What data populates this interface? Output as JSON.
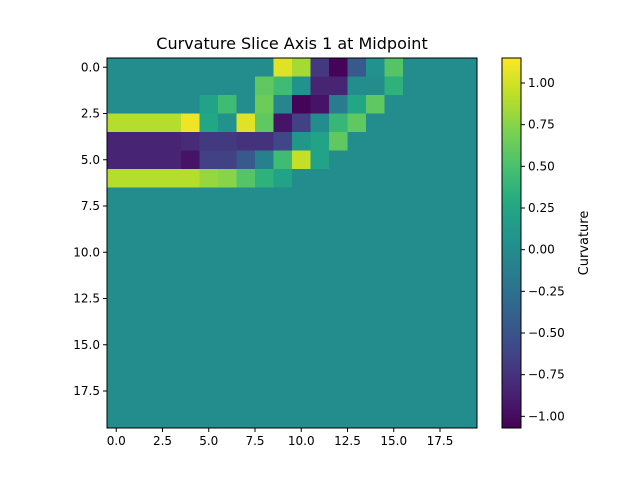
{
  "chart_data": {
    "type": "heatmap",
    "title": "Curvature Slice Axis 1 at Midpoint",
    "xlabel": "",
    "ylabel": "",
    "colorbar_label": "Curvature",
    "colormap": "viridis",
    "vmin": -1.07,
    "vmax": 1.15,
    "rows": 20,
    "cols": 20,
    "xlim": [
      -0.5,
      19.5
    ],
    "ylim": [
      19.5,
      -0.5
    ],
    "x_ticks": [
      {
        "value": 0,
        "label": "0.0"
      },
      {
        "value": 2.5,
        "label": "2.5"
      },
      {
        "value": 5,
        "label": "5.0"
      },
      {
        "value": 7.5,
        "label": "7.5"
      },
      {
        "value": 10,
        "label": "10.0"
      },
      {
        "value": 12.5,
        "label": "12.5"
      },
      {
        "value": 15,
        "label": "15.0"
      },
      {
        "value": 17.5,
        "label": "17.5"
      }
    ],
    "y_ticks": [
      {
        "value": 0,
        "label": "0.0"
      },
      {
        "value": 2.5,
        "label": "2.5"
      },
      {
        "value": 5,
        "label": "5.0"
      },
      {
        "value": 7.5,
        "label": "7.5"
      },
      {
        "value": 10,
        "label": "10.0"
      },
      {
        "value": 12.5,
        "label": "12.5"
      },
      {
        "value": 15,
        "label": "15.0"
      },
      {
        "value": 17.5,
        "label": "17.5"
      }
    ],
    "colorbar_ticks": [
      {
        "value": 1.0,
        "label": "1.00"
      },
      {
        "value": 0.75,
        "label": "0.75"
      },
      {
        "value": 0.5,
        "label": "0.50"
      },
      {
        "value": 0.25,
        "label": "0.25"
      },
      {
        "value": 0.0,
        "label": "0.00"
      },
      {
        "value": -0.25,
        "label": "−0.25"
      },
      {
        "value": -0.5,
        "label": "−0.50"
      },
      {
        "value": -0.75,
        "label": "−0.75"
      },
      {
        "value": -1.0,
        "label": "−1.00"
      }
    ],
    "values": [
      [
        0,
        0,
        0,
        0,
        0,
        0,
        0,
        0,
        0,
        1.05,
        0.85,
        -0.7,
        -1.05,
        -0.45,
        0.05,
        0.55,
        0,
        0,
        0,
        0
      ],
      [
        0,
        0,
        0,
        0,
        0,
        0,
        0,
        0,
        0.6,
        0.45,
        0.05,
        -0.85,
        -0.85,
        0,
        0,
        0.35,
        0,
        0,
        0,
        0
      ],
      [
        0,
        0,
        0,
        0,
        0,
        0.2,
        0.45,
        0,
        0.65,
        -0.05,
        -1.05,
        -0.95,
        -0.15,
        0.25,
        0.6,
        0,
        0,
        0,
        0,
        0
      ],
      [
        0.9,
        0.9,
        0.9,
        0.9,
        1.1,
        0.25,
        0.05,
        1.05,
        0.6,
        -0.95,
        -0.65,
        0,
        0.4,
        0.6,
        0,
        0,
        0,
        0,
        0,
        0
      ],
      [
        -0.85,
        -0.85,
        -0.85,
        -0.85,
        -0.8,
        -0.7,
        -0.7,
        -0.75,
        -0.75,
        -0.6,
        0.1,
        0.2,
        0.6,
        0,
        0,
        0,
        0,
        0,
        0,
        0
      ],
      [
        -0.85,
        -0.85,
        -0.85,
        -0.85,
        -0.95,
        -0.65,
        -0.65,
        -0.45,
        -0.1,
        0.45,
        0.95,
        0.2,
        0,
        0,
        0,
        0,
        0,
        0,
        0,
        0
      ],
      [
        0.9,
        0.9,
        0.9,
        0.9,
        0.9,
        0.8,
        0.75,
        0.55,
        0.35,
        0.2,
        0,
        0,
        0,
        0,
        0,
        0,
        0,
        0,
        0,
        0
      ],
      [
        0,
        0,
        0,
        0,
        0,
        0,
        0,
        0,
        0,
        0,
        0,
        0,
        0,
        0,
        0,
        0,
        0,
        0,
        0,
        0
      ],
      [
        0,
        0,
        0,
        0,
        0,
        0,
        0,
        0,
        0,
        0,
        0,
        0,
        0,
        0,
        0,
        0,
        0,
        0,
        0,
        0
      ],
      [
        0,
        0,
        0,
        0,
        0,
        0,
        0,
        0,
        0,
        0,
        0,
        0,
        0,
        0,
        0,
        0,
        0,
        0,
        0,
        0
      ],
      [
        0,
        0,
        0,
        0,
        0,
        0,
        0,
        0,
        0,
        0,
        0,
        0,
        0,
        0,
        0,
        0,
        0,
        0,
        0,
        0
      ],
      [
        0,
        0,
        0,
        0,
        0,
        0,
        0,
        0,
        0,
        0,
        0,
        0,
        0,
        0,
        0,
        0,
        0,
        0,
        0,
        0
      ],
      [
        0,
        0,
        0,
        0,
        0,
        0,
        0,
        0,
        0,
        0,
        0,
        0,
        0,
        0,
        0,
        0,
        0,
        0,
        0,
        0
      ],
      [
        0,
        0,
        0,
        0,
        0,
        0,
        0,
        0,
        0,
        0,
        0,
        0,
        0,
        0,
        0,
        0,
        0,
        0,
        0,
        0
      ],
      [
        0,
        0,
        0,
        0,
        0,
        0,
        0,
        0,
        0,
        0,
        0,
        0,
        0,
        0,
        0,
        0,
        0,
        0,
        0,
        0
      ],
      [
        0,
        0,
        0,
        0,
        0,
        0,
        0,
        0,
        0,
        0,
        0,
        0,
        0,
        0,
        0,
        0,
        0,
        0,
        0,
        0
      ],
      [
        0,
        0,
        0,
        0,
        0,
        0,
        0,
        0,
        0,
        0,
        0,
        0,
        0,
        0,
        0,
        0,
        0,
        0,
        0,
        0
      ],
      [
        0,
        0,
        0,
        0,
        0,
        0,
        0,
        0,
        0,
        0,
        0,
        0,
        0,
        0,
        0,
        0,
        0,
        0,
        0,
        0
      ],
      [
        0,
        0,
        0,
        0,
        0,
        0,
        0,
        0,
        0,
        0,
        0,
        0,
        0,
        0,
        0,
        0,
        0,
        0,
        0,
        0
      ],
      [
        0,
        0,
        0,
        0,
        0,
        0,
        0,
        0,
        0,
        0,
        0,
        0,
        0,
        0,
        0,
        0,
        0,
        0,
        0,
        0
      ]
    ]
  }
}
